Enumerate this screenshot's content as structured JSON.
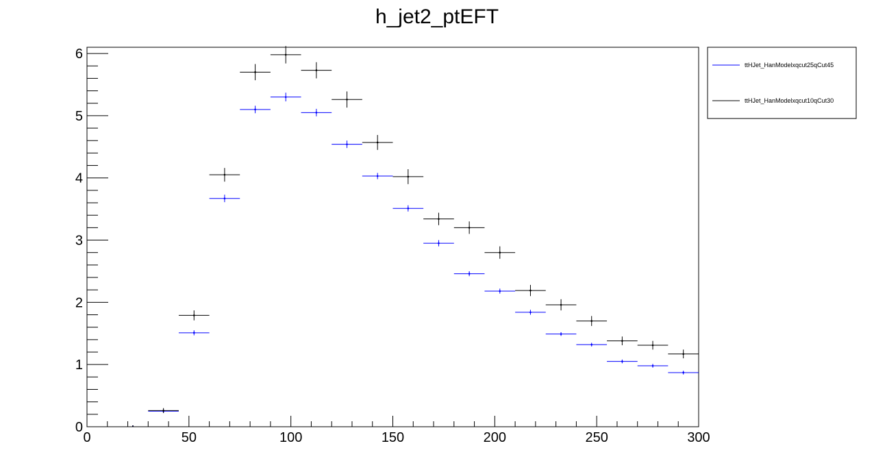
{
  "chart_data": {
    "type": "histogram",
    "title": "h_jet2_ptEFT",
    "xlabel": "",
    "ylabel": "",
    "xlim": [
      0,
      300
    ],
    "ylim": [
      0,
      6.1
    ],
    "x_ticks": [
      0,
      50,
      100,
      150,
      200,
      250,
      300
    ],
    "x_tick_labels": [
      "0",
      "50",
      "100",
      "150",
      "200",
      "250",
      "300"
    ],
    "y_ticks": [
      0,
      1,
      2,
      3,
      4,
      5,
      6
    ],
    "y_tick_labels": [
      "0",
      "1",
      "2",
      "3",
      "4",
      "5",
      "6"
    ],
    "bin_edges": [
      15,
      30,
      45,
      60,
      75,
      90,
      105,
      120,
      135,
      150,
      165,
      180,
      195,
      210,
      225,
      240,
      255,
      270,
      285,
      300
    ],
    "grid": false,
    "legend_position": "right-outside-top",
    "series": [
      {
        "name": "ttHJet_HanModelxqcut25qCut45",
        "color": "#0000ff",
        "values": [
          0.0,
          0.25,
          1.51,
          3.67,
          5.1,
          5.3,
          5.05,
          4.54,
          4.03,
          3.51,
          2.95,
          2.46,
          2.18,
          1.84,
          1.49,
          1.32,
          1.05,
          0.98,
          0.87
        ],
        "errors": [
          0.01,
          0.03,
          0.04,
          0.06,
          0.06,
          0.07,
          0.06,
          0.06,
          0.05,
          0.05,
          0.05,
          0.04,
          0.04,
          0.04,
          0.03,
          0.03,
          0.03,
          0.03,
          0.03
        ]
      },
      {
        "name": "ttHJet_HanModelxqcut10qCut30",
        "color": "#000000",
        "values": [
          0.0,
          0.26,
          1.79,
          4.05,
          5.7,
          5.98,
          5.73,
          5.26,
          4.57,
          4.02,
          3.34,
          3.2,
          2.8,
          2.19,
          1.96,
          1.7,
          1.38,
          1.31,
          1.17
        ],
        "errors": [
          0.01,
          0.04,
          0.08,
          0.11,
          0.13,
          0.14,
          0.13,
          0.13,
          0.12,
          0.12,
          0.1,
          0.1,
          0.1,
          0.09,
          0.09,
          0.08,
          0.07,
          0.07,
          0.07
        ]
      }
    ]
  }
}
